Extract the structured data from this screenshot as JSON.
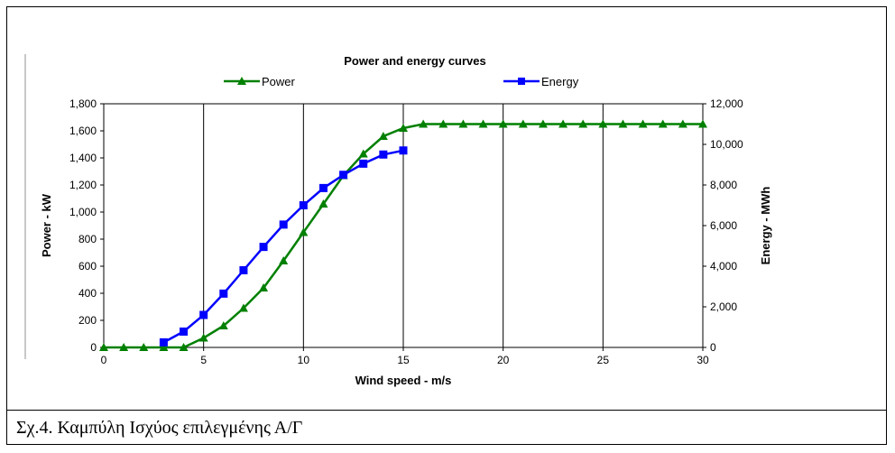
{
  "chart_data": {
    "type": "line",
    "title": "Power and energy curves",
    "xlabel": "Wind speed - m/s",
    "ylabel_left": "Power - kW",
    "ylabel_right": "Energy - MWh",
    "xlim": [
      0,
      30
    ],
    "ylim_left": [
      0,
      1800
    ],
    "ylim_right": [
      0,
      12000
    ],
    "x_ticks": [
      "0",
      "5",
      "10",
      "15",
      "20",
      "25",
      "30"
    ],
    "y_left_ticks": [
      "0",
      "200",
      "400",
      "600",
      "800",
      "1,000",
      "1,200",
      "1,400",
      "1,600",
      "1,800"
    ],
    "y_right_ticks": [
      "0",
      "2,000",
      "4,000",
      "6,000",
      "8,000",
      "10,000",
      "12,000"
    ],
    "grid": true,
    "legend_position": "top",
    "series": [
      {
        "name": "Power",
        "axis": "left",
        "color": "#008000",
        "marker": "triangle",
        "x": [
          0,
          1,
          2,
          3,
          4,
          5,
          6,
          7,
          8,
          9,
          10,
          11,
          12,
          13,
          14,
          15,
          16,
          17,
          18,
          19,
          20,
          21,
          22,
          23,
          24,
          25,
          26,
          27,
          28,
          29,
          30
        ],
        "values": [
          0,
          0,
          0,
          0,
          0,
          70,
          160,
          290,
          440,
          640,
          850,
          1060,
          1270,
          1430,
          1560,
          1620,
          1650,
          1650,
          1650,
          1650,
          1650,
          1650,
          1650,
          1650,
          1650,
          1650,
          1650,
          1650,
          1650,
          1650,
          1650
        ]
      },
      {
        "name": "Energy",
        "axis": "right",
        "color": "#0000ff",
        "marker": "square",
        "x": [
          3,
          4,
          5,
          6,
          7,
          8,
          9,
          10,
          11,
          12,
          13,
          14,
          15
        ],
        "values": [
          250,
          780,
          1600,
          2650,
          3800,
          4950,
          6050,
          7000,
          7850,
          8500,
          9050,
          9500,
          9700
        ]
      }
    ]
  },
  "caption": "Σχ.4. Καμπύλη Ισχύος επιλεγμένης Α/Γ"
}
